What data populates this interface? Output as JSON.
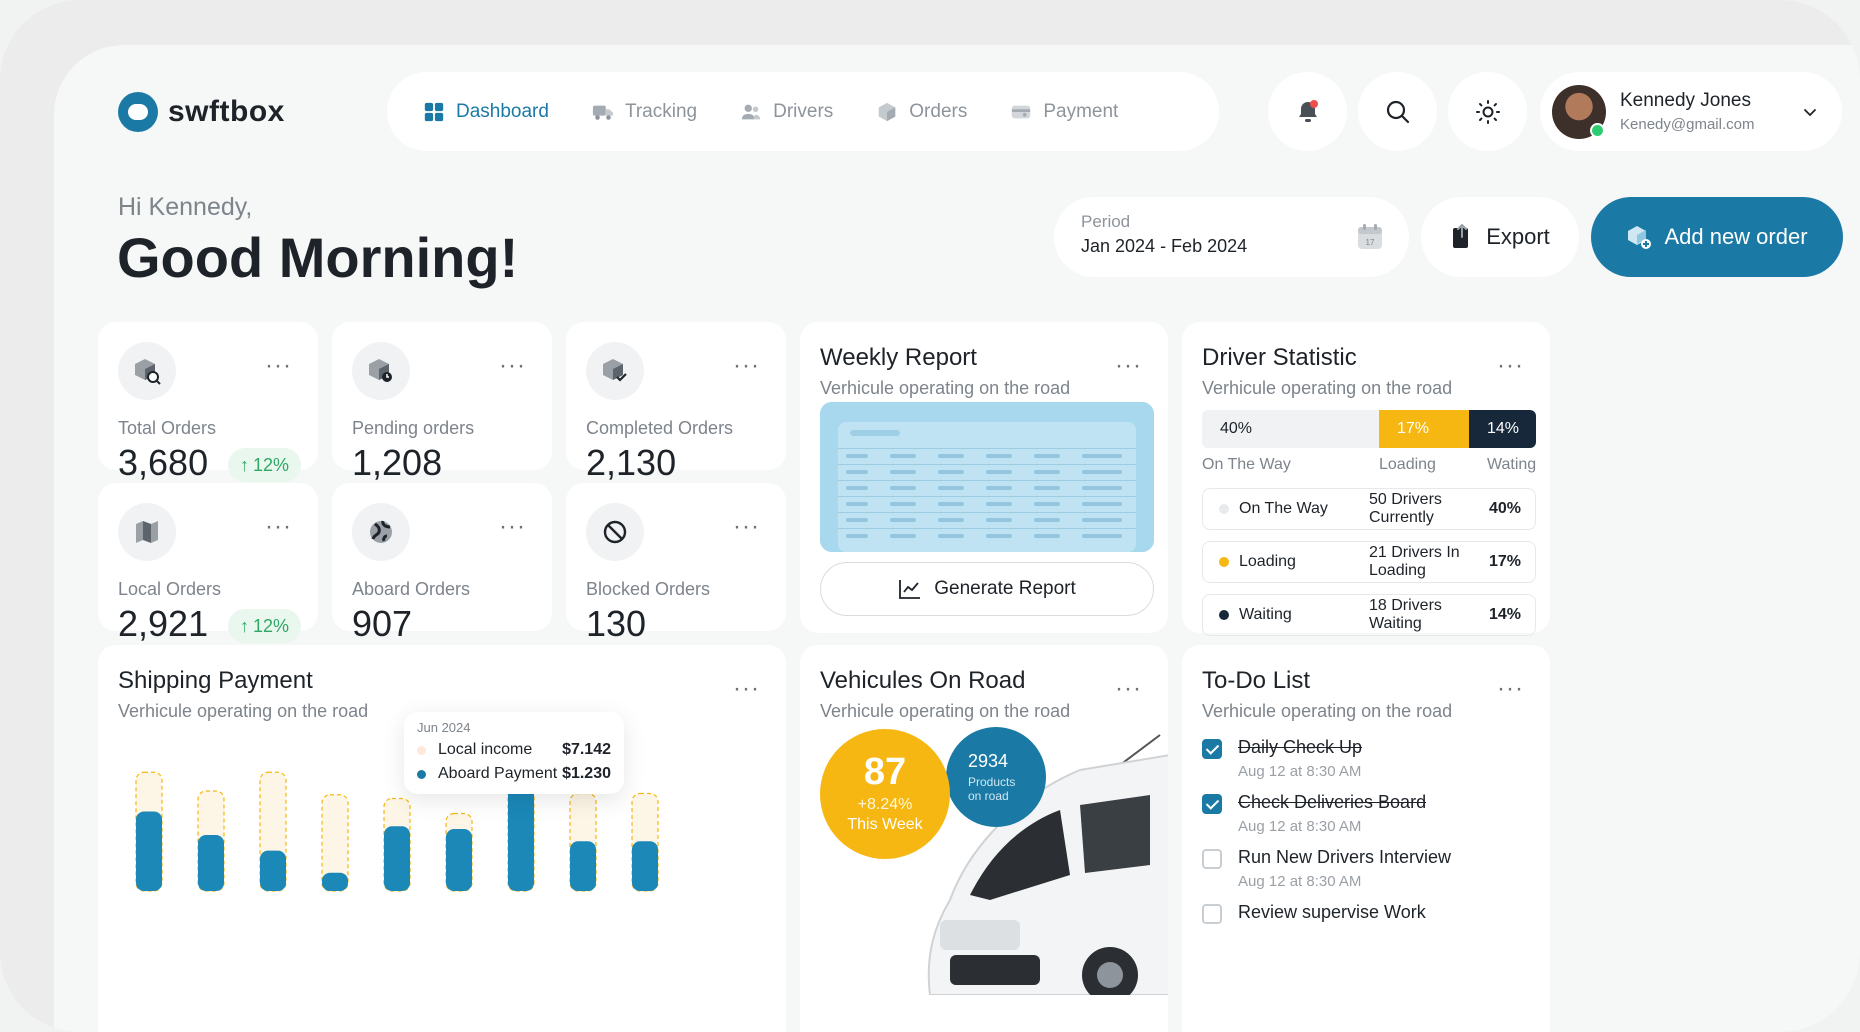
{
  "brand": {
    "name": "swftbox"
  },
  "nav": [
    {
      "label": "Dashboard",
      "icon": "dashboard-icon",
      "active": true
    },
    {
      "label": "Tracking",
      "icon": "truck-icon",
      "active": false
    },
    {
      "label": "Drivers",
      "icon": "drivers-icon",
      "active": false
    },
    {
      "label": "Orders",
      "icon": "box-icon",
      "active": false
    },
    {
      "label": "Payment",
      "icon": "payment-icon",
      "active": false
    }
  ],
  "user": {
    "name": "Kennedy Jones",
    "email": "Kenedy@gmail.com"
  },
  "greeting": {
    "small": "Hi Kennedy,",
    "big": "Good Morning!"
  },
  "period": {
    "label": "Period",
    "value": "Jan 2024 - Feb 2024"
  },
  "actions": {
    "export": "Export",
    "add_order": "Add new order"
  },
  "stats": [
    {
      "label": "Total Orders",
      "value": "3,680",
      "badge": "12%",
      "icon": "box-search-icon"
    },
    {
      "label": "Pending orders",
      "value": "1,208",
      "badge": null,
      "icon": "box-clock-icon"
    },
    {
      "label": "Completed Orders",
      "value": "2,130",
      "badge": null,
      "icon": "box-check-icon"
    },
    {
      "label": "Local Orders",
      "value": "2,921",
      "badge": "12%",
      "icon": "map-icon"
    },
    {
      "label": "Aboard Orders",
      "value": "907",
      "badge": null,
      "icon": "globe-icon"
    },
    {
      "label": "Blocked Orders",
      "value": "130",
      "badge": null,
      "icon": "blocked-icon"
    }
  ],
  "weekly_report": {
    "title": "Weekly Report",
    "subtitle": "Verhicule operating on the road",
    "button": "Generate Report"
  },
  "driver_statistic": {
    "title": "Driver Statistic",
    "subtitle": "Verhicule operating on the road",
    "segments": [
      {
        "label": "On The Way",
        "pct": "40%",
        "value": 40,
        "color": "#f1f2f3"
      },
      {
        "label": "Loading",
        "pct": "17%",
        "value": 17,
        "color": "#f6b712"
      },
      {
        "label": "Wating",
        "pct": "14%",
        "value": 14,
        "color": "#16283a"
      }
    ],
    "rows": [
      {
        "name": "On The Way",
        "desc": "50 Drivers Currently",
        "pct": "40%",
        "color": "#e8eaec"
      },
      {
        "name": "Loading",
        "desc": "21 Drivers In Loading",
        "pct": "17%",
        "color": "#f6b712"
      },
      {
        "name": "Waiting",
        "desc": "18 Drivers Waiting",
        "pct": "14%",
        "color": "#16283a"
      }
    ]
  },
  "shipping_payment": {
    "title": "Shipping Payment",
    "subtitle": "Verhicule operating on the road",
    "tooltip": {
      "date": "Jun 2024",
      "rows": [
        {
          "name": "Local income",
          "value": "$7.142",
          "color": "#fde9dc"
        },
        {
          "name": "Aboard Payment",
          "value": "$1.230",
          "color": "#1b7aa5"
        }
      ]
    },
    "bars": [
      {
        "fill": 0.67
      },
      {
        "fill": 0.56
      },
      {
        "fill": 0.34
      },
      {
        "fill": 0.19
      },
      {
        "fill": 0.7
      },
      {
        "fill": 0.8
      },
      {
        "fill": 1.0
      },
      {
        "fill": 0.51
      },
      {
        "fill": 0.51
      }
    ],
    "totals": [
      0.95,
      0.8,
      0.95,
      0.77,
      0.74,
      0.62,
      0.92,
      0.78,
      0.78
    ],
    "colors": {
      "fill": "#1b88b8",
      "track": "#fdf6e6",
      "track_border": "#f6b712"
    }
  },
  "vehicles": {
    "title": "Vehicules On Road",
    "subtitle": "Verhicule operating on the road",
    "main_value": "87",
    "main_change": "+8.24%",
    "main_period": "This Week",
    "secondary_value": "2934",
    "secondary_label": "Products on road"
  },
  "todo": {
    "title": "To-Do List",
    "subtitle": "Verhicule operating on the road",
    "items": [
      {
        "title": "Daily Check Up",
        "time": "Aug 12 at 8:30 AM",
        "done": true
      },
      {
        "title": "Check Deliveries Board",
        "time": "Aug 12 at 8:30 AM",
        "done": true
      },
      {
        "title": "Run New Drivers Interview",
        "time": "Aug 12 at 8:30 AM",
        "done": false
      },
      {
        "title": "Review supervise Work",
        "time": "",
        "done": false
      }
    ]
  }
}
